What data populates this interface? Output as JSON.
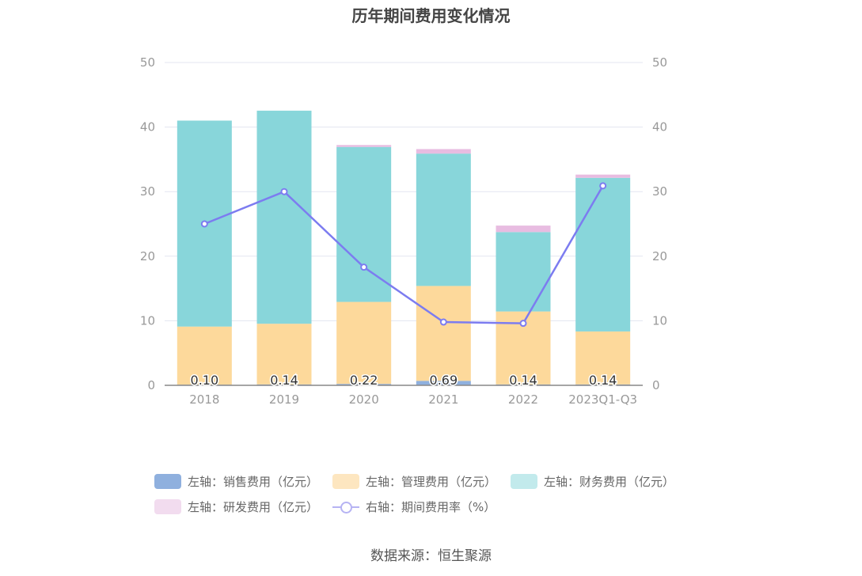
{
  "title": "历年期间费用变化情况",
  "source": "数据来源：恒生聚源",
  "colors": {
    "sales": "#8fb0de",
    "mgmt": "#fdd99b",
    "finance": "#88d6da",
    "rnd": "#e8bce1",
    "rate": "#7c7cf0",
    "axis_text": "#999999",
    "grid": "#e3e5f0"
  },
  "legend": {
    "sales": "左轴：销售费用（亿元）",
    "mgmt": "左轴：管理费用（亿元）",
    "finance": "左轴：财务费用（亿元）",
    "rnd": "左轴：研发费用（亿元）",
    "rate": "右轴：期间费用率（%）"
  },
  "chart_data": {
    "type": "bar",
    "stacked": true,
    "categories": [
      "2018",
      "2019",
      "2020",
      "2021",
      "2022",
      "2023Q1-Q3"
    ],
    "y_left": {
      "ylim": [
        0,
        50
      ],
      "ticks": [
        "0",
        "10",
        "20",
        "30",
        "40",
        "50"
      ]
    },
    "y_right": {
      "ylim": [
        0,
        50
      ],
      "ticks": [
        "0",
        "10",
        "20",
        "30",
        "40",
        "50"
      ]
    },
    "series": [
      {
        "key": "sales",
        "name": "左轴：销售费用（亿元）",
        "axis": "left",
        "type": "bar",
        "values": [
          0.1,
          0.14,
          0.22,
          0.69,
          0.14,
          0.14
        ],
        "labels": [
          "0.10",
          "0.14",
          "0.22",
          "0.69",
          "0.14",
          "0.14"
        ]
      },
      {
        "key": "mgmt",
        "name": "左轴：管理费用（亿元）",
        "axis": "left",
        "type": "bar",
        "values": [
          9.0,
          9.4,
          12.7,
          14.7,
          11.3,
          8.2
        ]
      },
      {
        "key": "finance",
        "name": "左轴：财务费用（亿元）",
        "axis": "left",
        "type": "bar",
        "values": [
          31.9,
          33.0,
          24.0,
          20.5,
          12.3,
          23.8
        ]
      },
      {
        "key": "rnd",
        "name": "左轴：研发费用（亿元）",
        "axis": "left",
        "type": "bar",
        "values": [
          0.0,
          0.0,
          0.3,
          0.7,
          1.0,
          0.5
        ]
      },
      {
        "key": "rate",
        "name": "右轴：期间费用率（%）",
        "axis": "right",
        "type": "line",
        "values": [
          25.0,
          30.0,
          18.3,
          9.8,
          9.6,
          30.9
        ]
      }
    ]
  }
}
